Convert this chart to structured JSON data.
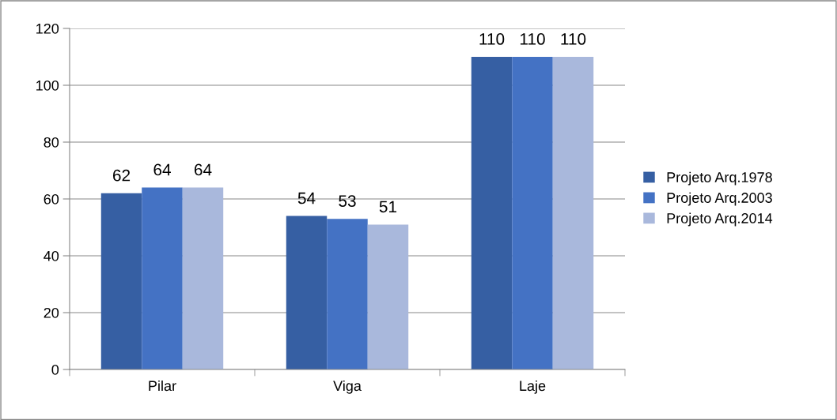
{
  "chart_data": {
    "type": "bar",
    "categories": [
      "Pilar",
      "Viga",
      "Laje"
    ],
    "series": [
      {
        "name": "Projeto Arq.1978",
        "color": "#365fa3",
        "values": [
          62,
          54,
          110
        ]
      },
      {
        "name": "Projeto Arq.2003",
        "color": "#4472c4",
        "values": [
          64,
          53,
          110
        ]
      },
      {
        "name": "Projeto Arq.2014",
        "color": "#a9b8dc",
        "values": [
          64,
          51,
          110
        ]
      }
    ],
    "ylim": [
      0,
      120
    ],
    "yticks": [
      0,
      20,
      40,
      60,
      80,
      100,
      120
    ],
    "grid": "y",
    "legend": "right",
    "data_labels": true
  }
}
